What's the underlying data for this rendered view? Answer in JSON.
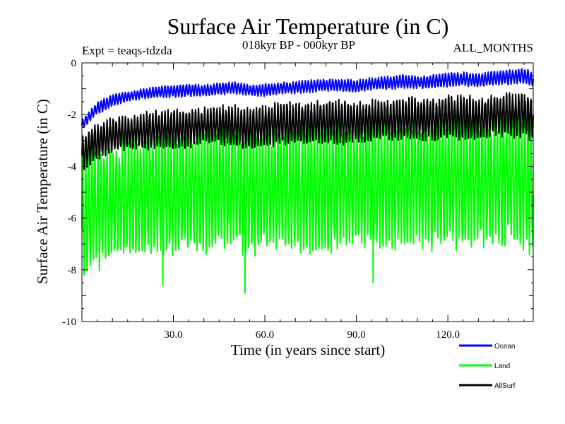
{
  "chart_data": {
    "type": "line",
    "title": "Surface Air Temperature (in C)",
    "subtitle": "018kyr BP - 000kyr BP",
    "left_label": "Expt = teaqs-tdzda",
    "right_label": "ALL_MONTHS",
    "xlabel": "Time (in years since start)",
    "ylabel": "Surface Air Temperature (in C)",
    "xlim": [
      0,
      148
    ],
    "ylim": [
      -10,
      0
    ],
    "xticks": [
      30,
      60,
      90,
      120
    ],
    "xtick_labels": [
      "30.0",
      "60.0",
      "90.0",
      "120.0"
    ],
    "yticks": [
      0,
      -2,
      -4,
      -6,
      -8,
      -10
    ],
    "ytick_labels": [
      "0",
      "-2",
      "-4",
      "-6",
      "-8",
      "-10"
    ],
    "legend_position": "bottom-right, below plot",
    "series": [
      {
        "name": "Land",
        "color": "#00ff00",
        "x": [
          0,
          5,
          10,
          15,
          20,
          25,
          30,
          35,
          40,
          45,
          50,
          55,
          60,
          65,
          70,
          75,
          80,
          85,
          90,
          95,
          100,
          105,
          110,
          115,
          120,
          125,
          130,
          135,
          140,
          145,
          148
        ],
        "y_high": [
          -3.2,
          -3.0,
          -3.0,
          -2.8,
          -2.7,
          -2.5,
          -2.6,
          -2.5,
          -2.4,
          -2.3,
          -2.4,
          -2.3,
          -2.4,
          -2.3,
          -2.2,
          -2.3,
          -2.2,
          -2.1,
          -2.3,
          -2.2,
          -2.1,
          -2.0,
          -2.1,
          -2.0,
          -1.9,
          -2.0,
          -2.0,
          -1.9,
          -1.8,
          -1.9,
          -2.0
        ],
        "y_low": [
          -8.7,
          -8.1,
          -7.7,
          -7.6,
          -7.6,
          -7.5,
          -7.7,
          -7.5,
          -7.5,
          -7.4,
          -7.3,
          -7.6,
          -7.4,
          -7.4,
          -7.5,
          -7.4,
          -7.5,
          -7.2,
          -7.2,
          -7.3,
          -7.2,
          -7.3,
          -7.2,
          -7.3,
          -7.2,
          -7.3,
          -7.2,
          -7.2,
          -7.1,
          -7.3,
          -7.6
        ],
        "notable_minima": [
          {
            "x": 26.5,
            "y": -8.6
          },
          {
            "x": 53.5,
            "y": -8.9
          },
          {
            "x": 95.5,
            "y": -8.5
          }
        ]
      },
      {
        "name": "AllSurf",
        "color": "#000000",
        "x": [
          0,
          5,
          10,
          15,
          20,
          25,
          30,
          35,
          40,
          45,
          50,
          55,
          60,
          65,
          70,
          75,
          80,
          85,
          90,
          95,
          100,
          105,
          110,
          115,
          120,
          125,
          130,
          135,
          140,
          145,
          148
        ],
        "y_high": [
          -2.7,
          -2.3,
          -2.1,
          -2.0,
          -1.9,
          -1.8,
          -1.8,
          -1.7,
          -1.7,
          -1.6,
          -1.6,
          -1.7,
          -1.6,
          -1.5,
          -1.5,
          -1.5,
          -1.4,
          -1.4,
          -1.5,
          -1.4,
          -1.4,
          -1.3,
          -1.3,
          -1.3,
          -1.2,
          -1.2,
          -1.3,
          -1.2,
          -1.1,
          -1.1,
          -1.2
        ],
        "y_low": [
          -4.2,
          -3.8,
          -3.5,
          -3.4,
          -3.4,
          -3.3,
          -3.4,
          -3.3,
          -3.2,
          -3.2,
          -3.3,
          -3.4,
          -3.3,
          -3.2,
          -3.2,
          -3.2,
          -3.1,
          -3.2,
          -3.1,
          -3.1,
          -3.0,
          -3.1,
          -3.0,
          -3.1,
          -3.0,
          -3.0,
          -3.0,
          -2.9,
          -3.0,
          -2.9,
          -3.2
        ]
      },
      {
        "name": "Ocean",
        "color": "#0000ff",
        "x": [
          0,
          5,
          10,
          15,
          20,
          25,
          30,
          35,
          40,
          45,
          50,
          55,
          60,
          65,
          70,
          75,
          80,
          85,
          90,
          95,
          100,
          105,
          110,
          115,
          120,
          125,
          130,
          135,
          140,
          145,
          148
        ],
        "y_high": [
          -2.2,
          -1.5,
          -1.2,
          -1.1,
          -1.0,
          -0.9,
          -0.85,
          -0.8,
          -0.85,
          -0.75,
          -0.7,
          -0.85,
          -0.8,
          -0.75,
          -0.7,
          -0.65,
          -0.6,
          -0.6,
          -0.65,
          -0.55,
          -0.5,
          -0.45,
          -0.5,
          -0.45,
          -0.35,
          -0.35,
          -0.4,
          -0.3,
          -0.25,
          -0.2,
          -0.35
        ],
        "y_low": [
          -2.6,
          -2.0,
          -1.7,
          -1.5,
          -1.4,
          -1.35,
          -1.35,
          -1.3,
          -1.3,
          -1.25,
          -1.2,
          -1.3,
          -1.3,
          -1.2,
          -1.2,
          -1.15,
          -1.1,
          -1.1,
          -1.15,
          -1.05,
          -1.05,
          -1.0,
          -1.0,
          -1.0,
          -0.95,
          -0.9,
          -0.95,
          -0.9,
          -0.85,
          -0.8,
          -0.95
        ]
      }
    ],
    "legend": [
      {
        "name": "Ocean",
        "color": "#0000ff"
      },
      {
        "name": "Land",
        "color": "#00ff00"
      },
      {
        "name": "AllSurf",
        "color": "#000000"
      }
    ]
  }
}
